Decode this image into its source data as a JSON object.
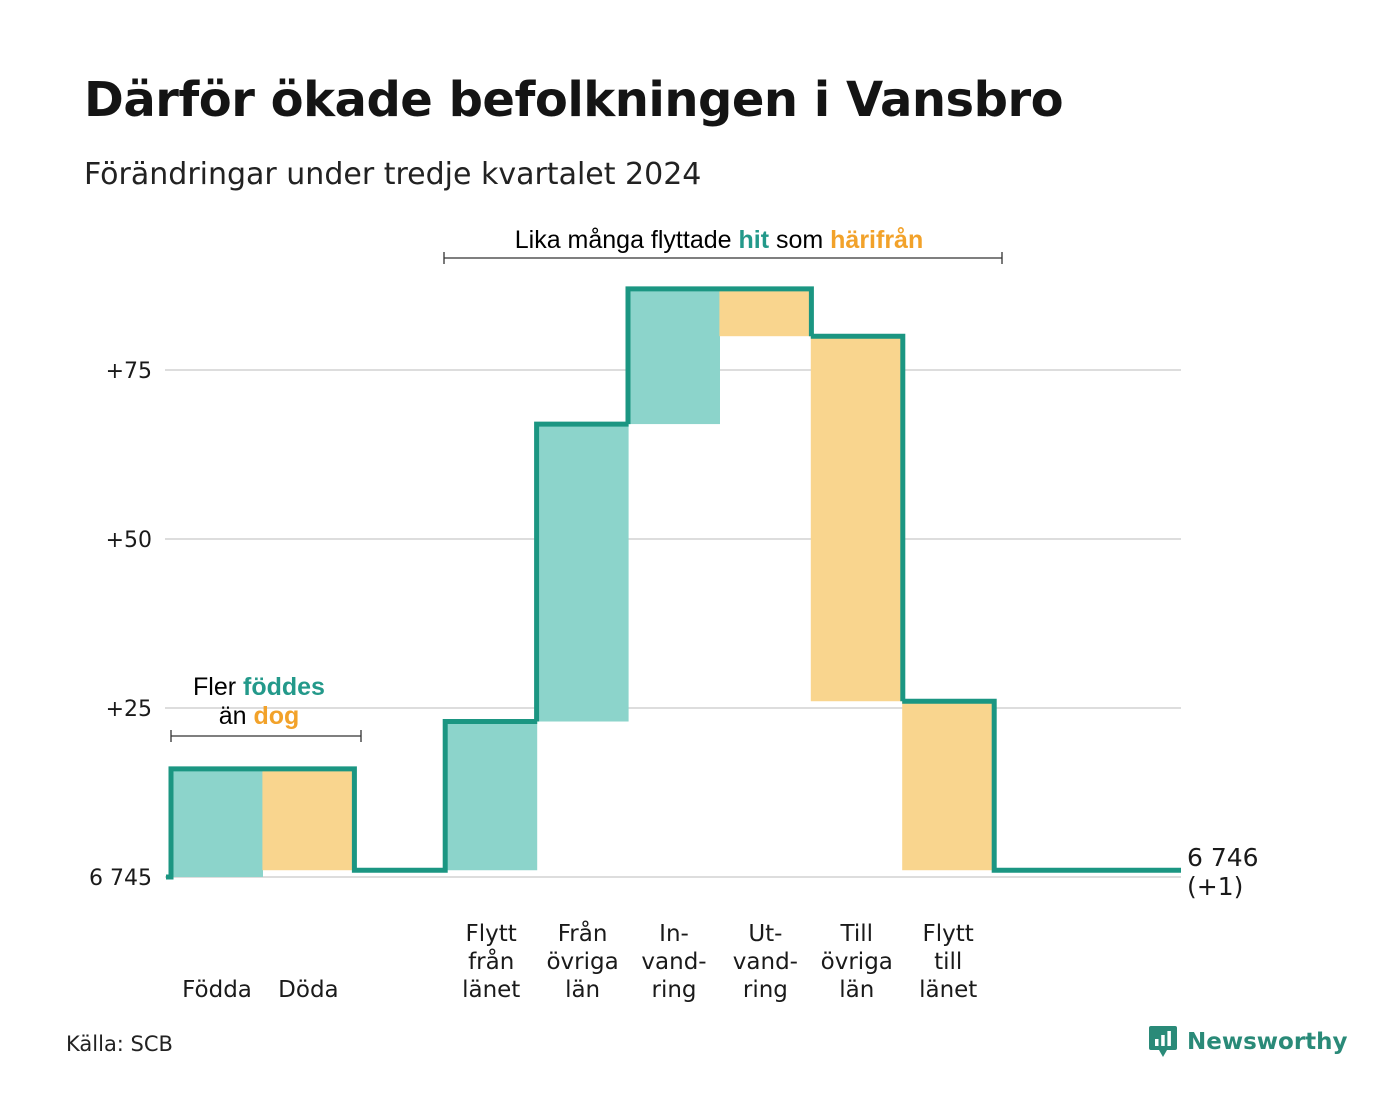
{
  "title": "Därför ökade befolkningen i Vansbro",
  "subtitle": "Förändringar under tredje kvartalet 2024",
  "source": "Källa: SCB",
  "brand": {
    "name": "Newsworthy",
    "icon": "newsworthy-logo-icon"
  },
  "colors": {
    "increase_fill": "#8cd4cb",
    "decrease_fill": "#f9d58e",
    "line": "#1b9682",
    "grid": "#dddddd",
    "increase_text": "#23998a",
    "decrease_text": "#f2a22a",
    "text": "#1a1a1a"
  },
  "annotations": {
    "births": {
      "line1_prefix": "Fler ",
      "line1_highlight": "föddes",
      "line2_prefix": "än ",
      "line2_highlight": "dog"
    },
    "moves": {
      "prefix": "Lika många flyttade ",
      "highlight1": "hit",
      "middle": " som ",
      "highlight2": "härifrån"
    }
  },
  "end_label": {
    "value": "6 746",
    "change": "(+1)"
  },
  "chart_data": {
    "type": "waterfall",
    "start_value": 6745,
    "end_value": 6746,
    "y_ticks": [
      {
        "value": 0,
        "label": "6 745"
      },
      {
        "value": 25,
        "label": "+25"
      },
      {
        "value": 50,
        "label": "+50"
      },
      {
        "value": 75,
        "label": "+75"
      }
    ],
    "ylim": [
      0,
      87
    ],
    "grid": true,
    "steps": [
      {
        "label": [
          "Födda"
        ],
        "change": 16,
        "kind": "increase"
      },
      {
        "label": [
          "Döda"
        ],
        "change": -15,
        "kind": "decrease"
      },
      {
        "label": [],
        "change": 0,
        "kind": "gap"
      },
      {
        "label": [
          "Flytt",
          "från",
          "länet"
        ],
        "change": 22,
        "kind": "increase"
      },
      {
        "label": [
          "Från",
          "övriga",
          "län"
        ],
        "change": 44,
        "kind": "increase"
      },
      {
        "label": [
          "In-",
          "vand-",
          "ring"
        ],
        "change": 20,
        "kind": "increase"
      },
      {
        "label": [
          "Ut-",
          "vand-",
          "ring"
        ],
        "change": -7,
        "kind": "decrease"
      },
      {
        "label": [
          "Till",
          "övriga",
          "län"
        ],
        "change": -54,
        "kind": "decrease"
      },
      {
        "label": [
          "Flytt",
          "till",
          "länet"
        ],
        "change": -25,
        "kind": "decrease"
      }
    ]
  }
}
